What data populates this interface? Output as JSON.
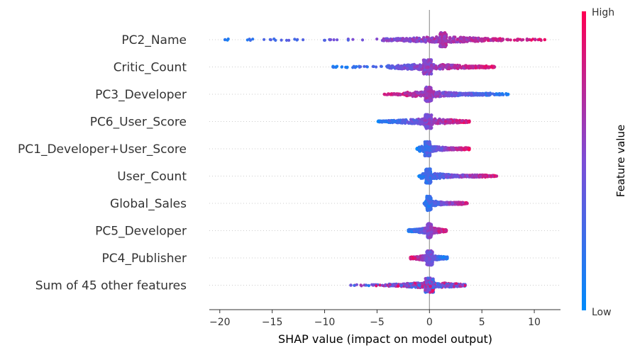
{
  "chart_data": {
    "type": "scatter",
    "subtype": "shap-beeswarm",
    "title": "",
    "xlabel": "SHAP value (impact on model output)",
    "ylabel": "",
    "xlim": [
      -21,
      12.5
    ],
    "xticks": [
      -20,
      -15,
      -10,
      -5,
      0,
      5,
      10
    ],
    "grid": false,
    "zero_line": 0,
    "features": [
      {
        "name": "PC2_Name",
        "min": -19.5,
        "max": 11.0,
        "dense_min": -4.5,
        "dense_max": 7.0,
        "core_center": 1.3,
        "core_halfwidth": 0.3,
        "high_side": "positive"
      },
      {
        "name": "Critic_Count",
        "min": -9.2,
        "max": 6.2,
        "dense_min": -4.0,
        "dense_max": 6.0,
        "core_center": -0.2,
        "core_halfwidth": 0.4,
        "high_side": "positive"
      },
      {
        "name": "PC3_Developer",
        "min": -4.3,
        "max": 7.5,
        "dense_min": -2.5,
        "dense_max": 5.8,
        "core_center": -0.1,
        "core_halfwidth": 0.3,
        "high_side": "negative"
      },
      {
        "name": "PC6_User_Score",
        "min": -4.9,
        "max": 3.8,
        "dense_min": -4.0,
        "dense_max": 3.8,
        "core_center": -0.1,
        "core_halfwidth": 0.3,
        "high_side": "positive"
      },
      {
        "name": "PC1_Developer+User_Score",
        "min": -1.2,
        "max": 3.8,
        "dense_min": -1.0,
        "dense_max": 3.8,
        "core_center": -0.2,
        "core_halfwidth": 0.25,
        "high_side": "positive"
      },
      {
        "name": "User_Count",
        "min": -1.0,
        "max": 6.4,
        "dense_min": -0.8,
        "dense_max": 5.5,
        "core_center": -0.1,
        "core_halfwidth": 0.25,
        "high_side": "positive"
      },
      {
        "name": "Global_Sales",
        "min": -0.5,
        "max": 3.6,
        "dense_min": -0.4,
        "dense_max": 3.2,
        "core_center": -0.05,
        "core_halfwidth": 0.2,
        "high_side": "positive"
      },
      {
        "name": "PC5_Developer",
        "min": -2.0,
        "max": 1.6,
        "dense_min": -2.0,
        "dense_max": 1.6,
        "core_center": 0.0,
        "core_halfwidth": 0.2,
        "high_side": "positive"
      },
      {
        "name": "PC4_Publisher",
        "min": -1.8,
        "max": 1.7,
        "dense_min": -1.8,
        "dense_max": 1.7,
        "core_center": 0.0,
        "core_halfwidth": 0.3,
        "high_side": "negative"
      },
      {
        "name": "Sum of 45 other features",
        "min": -7.5,
        "max": 3.4,
        "dense_min": -4.0,
        "dense_max": 3.4,
        "core_center": 0.0,
        "core_halfwidth": 0.4,
        "high_side": "mixed"
      }
    ],
    "colorbar": {
      "label": "Feature value",
      "high_label": "High",
      "low_label": "Low",
      "low_color": "#008bfb",
      "mid_color": "#7c4dd6",
      "high_color": "#ff0052"
    }
  }
}
